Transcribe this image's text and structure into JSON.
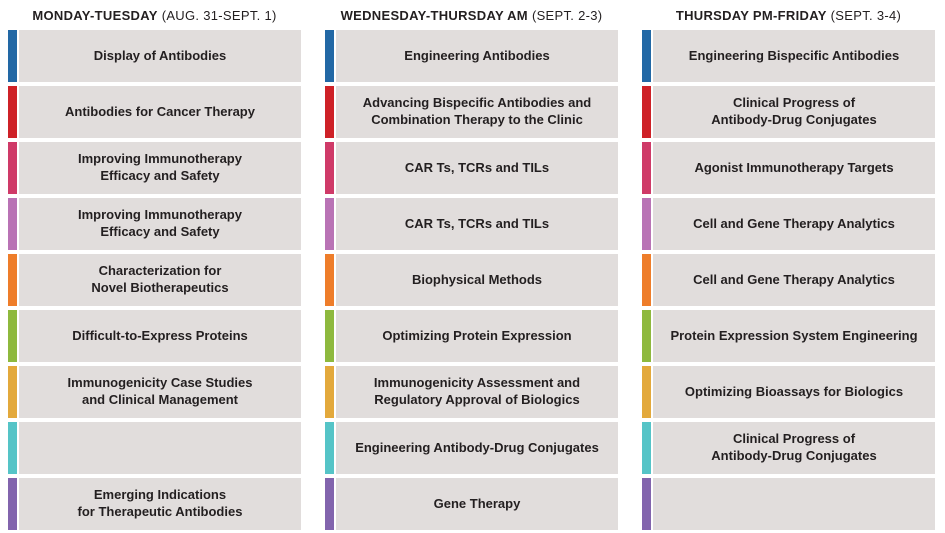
{
  "theme": {
    "card_bg": "#e1dddc",
    "text_color": "#231f20",
    "page_bg": "#ffffff"
  },
  "columns": [
    {
      "id": "monday-tuesday",
      "title": "MONDAY-TUESDAY",
      "dates": "(AUG. 31-SEPT. 1)",
      "rows": [
        {
          "track": "blue",
          "track_color": "#2268a5",
          "label": "Display of Antibodies"
        },
        {
          "track": "red",
          "track_color": "#ce2127",
          "label": "Antibodies for Cancer Therapy"
        },
        {
          "track": "pink",
          "track_color": "#cf3a68",
          "label": "Improving Immunotherapy\nEfficacy and Safety"
        },
        {
          "track": "orchid",
          "track_color": "#b973b5",
          "label": "Improving Immunotherapy\nEfficacy and Safety"
        },
        {
          "track": "orange",
          "track_color": "#ee7d2a",
          "label": "Characterization for\nNovel Biotherapeutics"
        },
        {
          "track": "green",
          "track_color": "#8eb93e",
          "label": "Difficult-to-Express Proteins"
        },
        {
          "track": "gold",
          "track_color": "#e3a93c",
          "label": "Immunogenicity Case Studies\nand Clinical Management"
        },
        {
          "track": "teal",
          "track_color": "#55c4c7",
          "label": ""
        },
        {
          "track": "purple",
          "track_color": "#8264ad",
          "label": "Emerging Indications\nfor Therapeutic Antibodies"
        }
      ]
    },
    {
      "id": "wednesday-thursday-am",
      "title": "WEDNESDAY-THURSDAY AM",
      "dates": "(SEPT. 2-3)",
      "rows": [
        {
          "track": "blue",
          "track_color": "#2268a5",
          "label": "Engineering Antibodies"
        },
        {
          "track": "red",
          "track_color": "#ce2127",
          "label": "Advancing Bispecific Antibodies and\nCombination Therapy to the Clinic"
        },
        {
          "track": "pink",
          "track_color": "#cf3a68",
          "label": "CAR Ts, TCRs and TILs"
        },
        {
          "track": "orchid",
          "track_color": "#b973b5",
          "label": "CAR Ts, TCRs and TILs"
        },
        {
          "track": "orange",
          "track_color": "#ee7d2a",
          "label": "Biophysical Methods"
        },
        {
          "track": "green",
          "track_color": "#8eb93e",
          "label": "Optimizing Protein Expression"
        },
        {
          "track": "gold",
          "track_color": "#e3a93c",
          "label": "Immunogenicity Assessment and\nRegulatory Approval of Biologics"
        },
        {
          "track": "teal",
          "track_color": "#55c4c7",
          "label": "Engineering Antibody-Drug Conjugates"
        },
        {
          "track": "purple",
          "track_color": "#8264ad",
          "label": "Gene Therapy"
        }
      ]
    },
    {
      "id": "thursday-pm-friday",
      "title": "THURSDAY PM-FRIDAY",
      "dates": "(SEPT. 3-4)",
      "rows": [
        {
          "track": "blue",
          "track_color": "#2268a5",
          "label": "Engineering Bispecific Antibodies"
        },
        {
          "track": "red",
          "track_color": "#ce2127",
          "label": "Clinical Progress of\nAntibody-Drug Conjugates"
        },
        {
          "track": "pink",
          "track_color": "#cf3a68",
          "label": "Agonist Immunotherapy Targets"
        },
        {
          "track": "orchid",
          "track_color": "#b973b5",
          "label": "Cell and Gene Therapy Analytics"
        },
        {
          "track": "orange",
          "track_color": "#ee7d2a",
          "label": "Cell and Gene Therapy Analytics"
        },
        {
          "track": "green",
          "track_color": "#8eb93e",
          "label": "Protein Expression System Engineering"
        },
        {
          "track": "gold",
          "track_color": "#e3a93c",
          "label": "Optimizing Bioassays for Biologics"
        },
        {
          "track": "teal",
          "track_color": "#55c4c7",
          "label": "Clinical Progress of\nAntibody-Drug Conjugates"
        },
        {
          "track": "purple",
          "track_color": "#8264ad",
          "label": ""
        }
      ]
    }
  ]
}
